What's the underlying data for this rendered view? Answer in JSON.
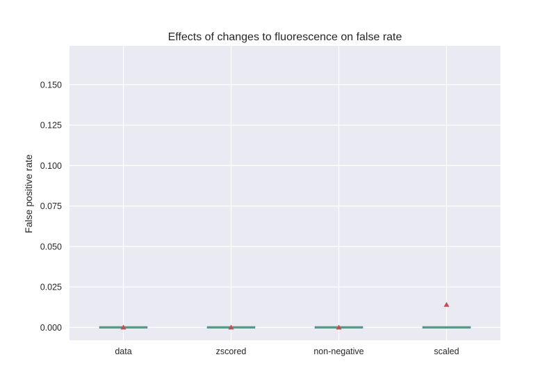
{
  "chart_data": {
    "type": "box",
    "title": "Effects of changes to fluorescence on false  rate",
    "xlabel": "",
    "ylabel": "False positive rate",
    "categories": [
      "data",
      "zscored",
      "non-negative",
      "scaled"
    ],
    "ylim": [
      -0.008,
      0.174
    ],
    "yticks": [
      "0.000",
      "0.025",
      "0.050",
      "0.075",
      "0.100",
      "0.125",
      "0.150"
    ],
    "ytick_values": [
      0.0,
      0.025,
      0.05,
      0.075,
      0.1,
      0.125,
      0.15
    ],
    "boxes": [
      {
        "q1": 0.0,
        "median": 0.0,
        "q3": 0.0,
        "whisker_low": 0.0,
        "whisker_high": 0.0,
        "mean": 0.0
      },
      {
        "q1": 0.0,
        "median": 0.0,
        "q3": 0.0,
        "whisker_low": 0.0,
        "whisker_high": 0.0,
        "mean": 0.0
      },
      {
        "q1": 0.0,
        "median": 0.0,
        "q3": 0.0,
        "whisker_low": 0.0,
        "whisker_high": 0.0,
        "mean": 0.0
      },
      {
        "q1": 0.0,
        "median": 0.0,
        "q3": 0.0,
        "whisker_low": 0.0,
        "whisker_high": 0.0,
        "mean": 0.014
      }
    ],
    "grid": true,
    "colors": {
      "background": "#eaeaf2",
      "grid": "#ffffff",
      "box": "#4c72b0",
      "median": "#55a868",
      "mean_marker": "#c44e52"
    }
  }
}
